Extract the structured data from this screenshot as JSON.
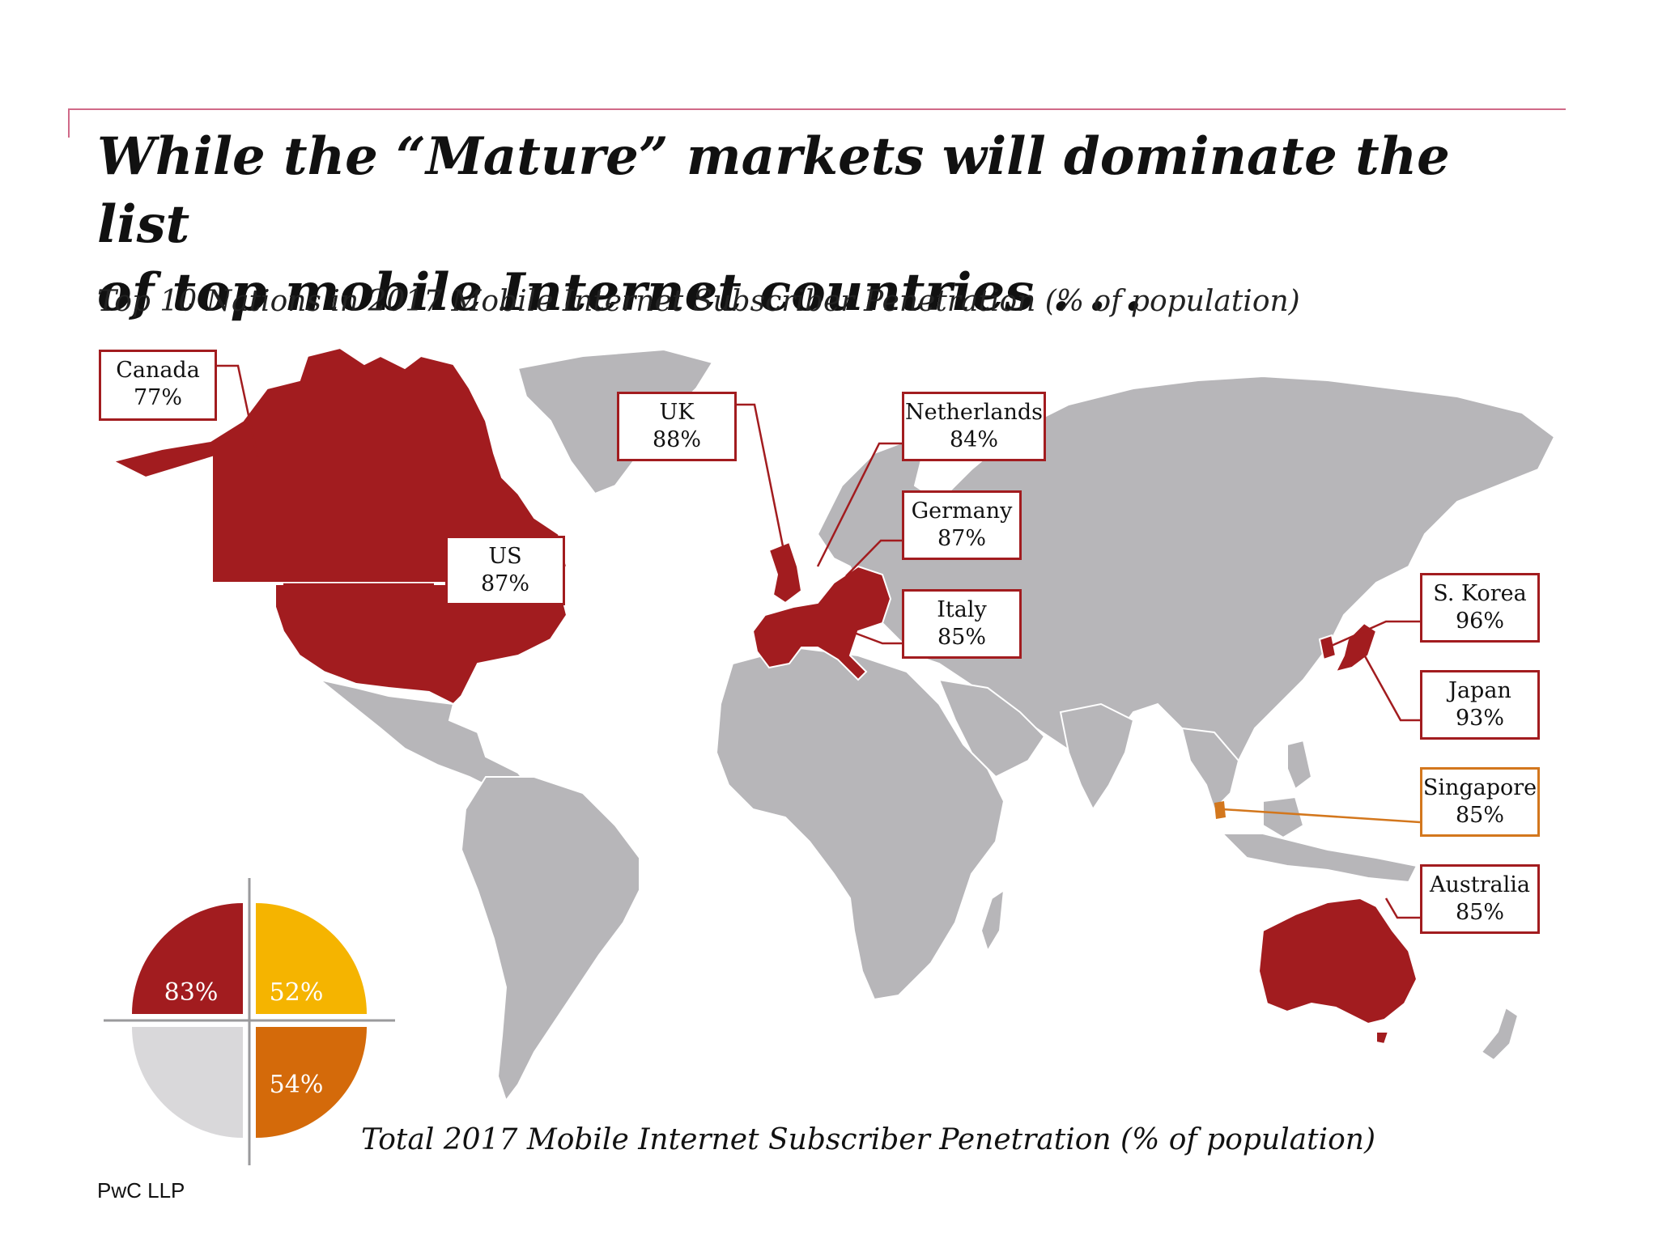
{
  "title": {
    "line1": "While the “Mature” markets will dominate the list",
    "line2": "of top mobile Internet countries . . ."
  },
  "subtitle": "Top 10 Nations in 2017 Mobile Internet Subscriber Penetration (% of population)",
  "colors": {
    "top10": "#a21c1f",
    "singapore": "#d3771d",
    "other_land": "#b7b6b9",
    "borders": "#ffffff",
    "accent_rule": "#d06a88"
  },
  "callouts": [
    {
      "country": "Canada",
      "value": "77%"
    },
    {
      "country": "UK",
      "value": "88%"
    },
    {
      "country": "Netherlands",
      "value": "84%"
    },
    {
      "country": "Germany",
      "value": "87%"
    },
    {
      "country": "US",
      "value": "87%"
    },
    {
      "country": "Italy",
      "value": "85%"
    },
    {
      "country": "S. Korea",
      "value": "96%"
    },
    {
      "country": "Japan",
      "value": "93%"
    },
    {
      "country": "Singapore",
      "value": "85%"
    },
    {
      "country": "Australia",
      "value": "85%"
    }
  ],
  "pie": {
    "caption": "Total 2017 Mobile Internet Subscriber Penetration (% of population)",
    "quadrants": [
      {
        "label": "83%",
        "value": 83,
        "color": "#a21c1f"
      },
      {
        "label": "52%",
        "value": 52,
        "color": "#f5b400"
      },
      {
        "label": "54%",
        "value": 54,
        "color": "#d46a0a"
      },
      {
        "label": "",
        "color": "#d9d8da"
      }
    ]
  },
  "footer": "PwC LLP"
}
